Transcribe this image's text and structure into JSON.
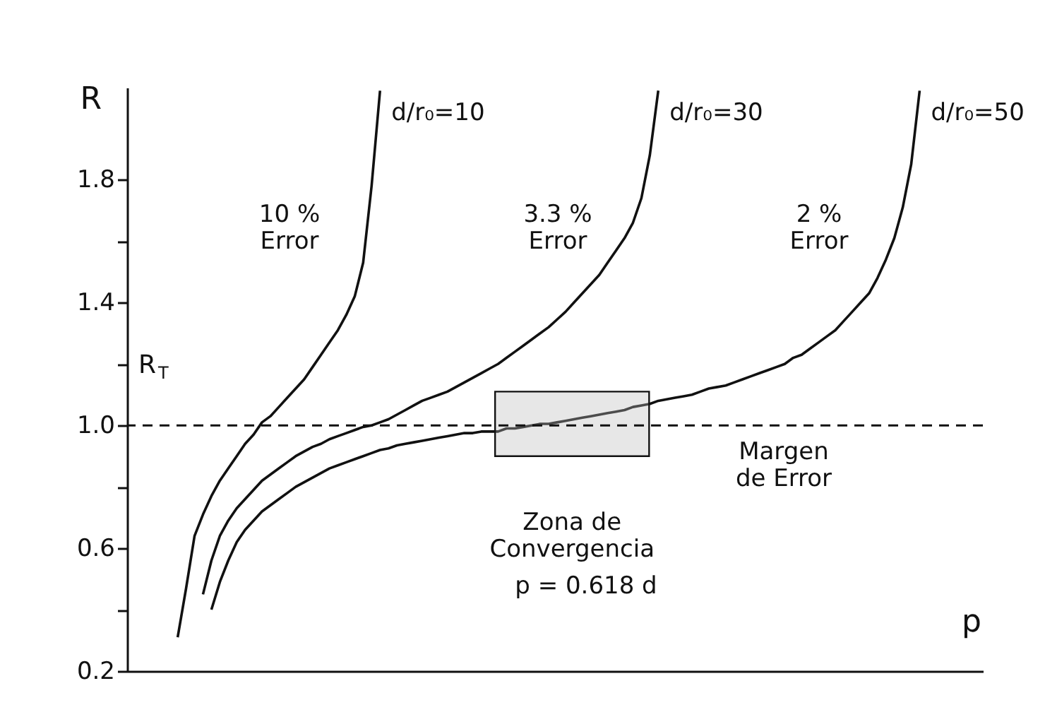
{
  "chart_data": {
    "type": "line",
    "xlabel": "p",
    "ylabel": "R",
    "categories": [
      null,
      null,
      null,
      null,
      null,
      null,
      null,
      null,
      null,
      null,
      null,
      null,
      null,
      null,
      null,
      null,
      null,
      null,
      null,
      null,
      null,
      null,
      null,
      null,
      null,
      null,
      null,
      null,
      null,
      null,
      null,
      null,
      null,
      null,
      null,
      null,
      null,
      null,
      null,
      null,
      null,
      null,
      null,
      null,
      null,
      null,
      null,
      null,
      null,
      null,
      null,
      null,
      null,
      null,
      null,
      null,
      null,
      null,
      null,
      null,
      null,
      null,
      null,
      null,
      null,
      null,
      null,
      null,
      null,
      null,
      null,
      null,
      null,
      null,
      null,
      null,
      null,
      null,
      null,
      null,
      null,
      null,
      null,
      null,
      null,
      null,
      null,
      null,
      null,
      null,
      null,
      null,
      null,
      null,
      null,
      null,
      null,
      null,
      null,
      null,
      null
    ],
    "ylim": [
      0.2,
      2.1
    ],
    "yticks": [
      {
        "value": 0.2,
        "label": "0.2"
      },
      {
        "value": 0.4,
        "label": null
      },
      {
        "value": 0.6,
        "label": "0.6"
      },
      {
        "value": 0.8,
        "label": null
      },
      {
        "value": 1,
        "label": "1.0"
      },
      {
        "value": 1.2,
        "label": null
      },
      {
        "value": 1.4,
        "label": "1.4"
      },
      {
        "value": 1.6,
        "label": null
      },
      {
        "value": 1.8,
        "label": "1.8"
      }
    ],
    "tick_labels": "y",
    "line_style": "solid",
    "series": [
      {
        "name": "d/r₀=10",
        "color": "#111111",
        "values": [
          null,
          null,
          null,
          null,
          null,
          null,
          0.31,
          0.47,
          0.64,
          0.71,
          0.77,
          0.82,
          0.86,
          0.9,
          0.94,
          0.97,
          1.01,
          1.03,
          1.06,
          1.09,
          1.12,
          1.15,
          1.19,
          1.23,
          1.27,
          1.31,
          1.36,
          1.42,
          1.53,
          1.78,
          2.09,
          null,
          null,
          null,
          null,
          null,
          null,
          null,
          null,
          null,
          null,
          null,
          null,
          null,
          null,
          null,
          null,
          null,
          null,
          null,
          null,
          null,
          null,
          null,
          null,
          null,
          null,
          null,
          null,
          null,
          null,
          null,
          null,
          null,
          null,
          null,
          null,
          null,
          null,
          null,
          null,
          null,
          null,
          null,
          null,
          null,
          null,
          null,
          null,
          null,
          null,
          null,
          null,
          null,
          null,
          null,
          null,
          null,
          null,
          null,
          null,
          null,
          null,
          null,
          null,
          null,
          null,
          null,
          null,
          null,
          null
        ]
      },
      {
        "name": "d/r₀=30",
        "color": "#111111",
        "values": [
          null,
          null,
          null,
          null,
          null,
          null,
          null,
          null,
          null,
          0.45,
          0.56,
          0.64,
          0.69,
          0.73,
          0.76,
          0.79,
          0.82,
          0.84,
          0.86,
          0.88,
          0.9,
          0.915,
          0.93,
          0.94,
          0.955,
          0.965,
          0.975,
          0.985,
          0.995,
          1.0,
          1.01,
          1.02,
          1.035,
          1.05,
          1.065,
          1.08,
          1.09,
          1.1,
          1.11,
          1.125,
          1.14,
          1.155,
          1.17,
          1.185,
          1.2,
          1.22,
          1.24,
          1.26,
          1.28,
          1.3,
          1.32,
          1.345,
          1.37,
          1.4,
          1.43,
          1.46,
          1.49,
          1.53,
          1.57,
          1.61,
          1.66,
          1.74,
          1.88,
          2.09,
          null,
          null,
          null,
          null,
          null,
          null,
          null,
          null,
          null,
          null,
          null,
          null,
          null,
          null,
          null,
          null,
          null,
          null,
          null,
          null,
          null,
          null,
          null,
          null,
          null,
          null,
          null,
          null,
          null,
          null,
          null,
          null,
          null,
          null,
          null,
          null,
          null
        ]
      },
      {
        "name": "d/r₀=50",
        "color": "#111111",
        "values": [
          null,
          null,
          null,
          null,
          null,
          null,
          null,
          null,
          null,
          null,
          0.4,
          0.49,
          0.56,
          0.62,
          0.66,
          0.69,
          0.72,
          0.74,
          0.76,
          0.78,
          0.8,
          0.815,
          0.83,
          0.845,
          0.86,
          0.87,
          0.88,
          0.89,
          0.9,
          0.91,
          0.92,
          0.925,
          0.935,
          0.94,
          0.945,
          0.95,
          0.955,
          0.96,
          0.965,
          0.97,
          0.975,
          0.975,
          0.98,
          0.98,
          0.98,
          0.99,
          0.99,
          0.995,
          1.0,
          1.005,
          1.005,
          1.01,
          1.015,
          1.02,
          1.025,
          1.03,
          1.035,
          1.04,
          1.045,
          1.05,
          1.06,
          1.065,
          1.07,
          1.08,
          1.085,
          1.09,
          1.095,
          1.1,
          1.11,
          1.12,
          1.125,
          1.13,
          1.14,
          1.15,
          1.16,
          1.17,
          1.18,
          1.19,
          1.2,
          1.22,
          1.23,
          1.25,
          1.27,
          1.29,
          1.31,
          1.34,
          1.37,
          1.4,
          1.43,
          1.48,
          1.54,
          1.61,
          1.71,
          1.85,
          2.09,
          null,
          null,
          null,
          null,
          null,
          null
        ]
      }
    ],
    "ref_lines": [
      {
        "axis": "y",
        "value": 1,
        "label": "R$_{T}$",
        "line_style": "dashed",
        "color": "#111111"
      }
    ],
    "bands": [
      {
        "axis": "y",
        "from": 0.9,
        "to": 1.11,
        "label": "Zona de\nConvergencia",
        "color": "#bbbbbb"
      }
    ],
    "annotations": [
      "10 %\nError",
      "3.3 %\nError",
      "2 %\nError",
      "p = 0.618 d",
      "Margen\nde Error"
    ]
  }
}
